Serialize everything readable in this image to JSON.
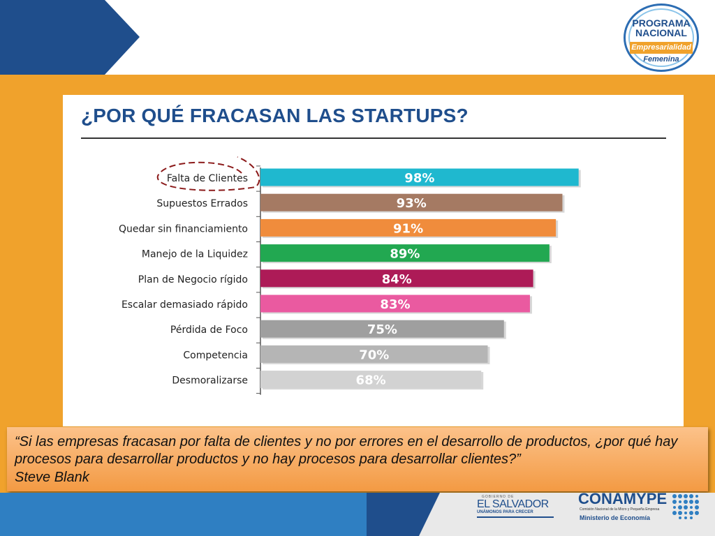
{
  "chart_data": {
    "type": "bar",
    "orientation": "horizontal",
    "title": "¿POR QUÉ FRACASAN LAS STARTUPS?",
    "categories": [
      "Falta de Clientes",
      "Supuestos Errados",
      "Quedar sin financiamiento",
      "Manejo de la Liquidez",
      "Plan de Negocio rígido",
      "Escalar demasiado rápido",
      "Pérdida de Foco",
      "Competencia",
      "Desmoralizarse"
    ],
    "values": [
      98,
      93,
      91,
      89,
      84,
      83,
      75,
      70,
      68
    ],
    "value_labels": [
      "98%",
      "93%",
      "91%",
      "89%",
      "84%",
      "83%",
      "75%",
      "70%",
      "68%"
    ],
    "colors": [
      "#1fb8cf",
      "#a57a63",
      "#f08c3c",
      "#22a851",
      "#ad1b57",
      "#ea5aa0",
      "#9f9f9f",
      "#b5b5b5",
      "#d2d2d2"
    ],
    "highlight": "Falta de Clientes",
    "highlight_color": "#8b1a1a",
    "xlim": [
      0,
      100
    ],
    "grid": false,
    "legend": "none"
  },
  "logo": {
    "line1": "PROGRAMA",
    "line2": "NACIONAL",
    "ribbon": "Empresarialidad",
    "line3": "Femenina"
  },
  "quote": {
    "text": "“Si las empresas fracasan por falta de clientes y no por errores en el desarrollo de productos, ¿por qué hay procesos para desarrollar productos y no hay procesos para desarrollar clientes?”",
    "author": "Steve Blank"
  },
  "footer": {
    "gobierno_small": "GOBIERNO DE",
    "gobierno_name": "EL SALVADOR",
    "gobierno_slogan": "UNÁMONOS PARA CRECER",
    "conamype_name": "CONAMYPE",
    "conamype_sub": "Comisión Nacional de la Micro y Pequeña Empresa",
    "conamype_ministry": "Ministerio de Economía"
  },
  "colors": {
    "navy": "#1f4e8c",
    "orange": "#f0a22c",
    "light_blue": "#2f7fc2"
  }
}
